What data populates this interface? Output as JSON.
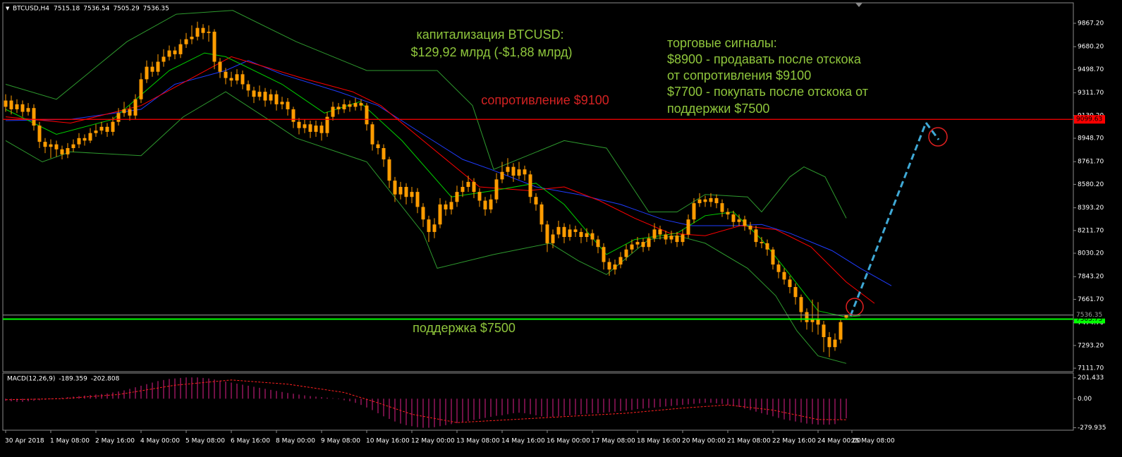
{
  "chart_data": {
    "type": "candlestick",
    "title": "BTCUSD,H4",
    "color": "#ff9c00",
    "open": [
      9200,
      9250,
      9180,
      9220,
      9160,
      9190,
      9050,
      8920,
      8880,
      8900,
      8860,
      8820,
      8870,
      8900,
      8950,
      8930,
      8990,
      9010,
      9040,
      9000,
      9080,
      9150,
      9180,
      9130,
      9260,
      9420,
      9520,
      9480,
      9560,
      9600,
      9650,
      9620,
      9700,
      9740,
      9760,
      9830,
      9790,
      9800,
      9560,
      9480,
      9430,
      9410,
      9460,
      9380,
      9330,
      9280,
      9320,
      9250,
      9300,
      9220,
      9240,
      9180,
      9080,
      9030,
      9060,
      9000,
      9050,
      8990,
      9120,
      9200,
      9180,
      9220,
      9200,
      9230,
      9210,
      9060,
      8900,
      8870,
      8780,
      8610,
      8500,
      8560,
      8480,
      8520,
      8400,
      8300,
      8200,
      8260,
      8420,
      8380,
      8440,
      8520,
      8560,
      8600,
      8520,
      8450,
      8380,
      8460,
      8620,
      8680,
      8720,
      8650,
      8700,
      8660,
      8480,
      8420,
      8260,
      8110,
      8180,
      8240,
      8160,
      8220,
      8200,
      8160,
      8190,
      8140,
      8080,
      7960,
      7900,
      7940,
      8000,
      8060,
      8100,
      8120,
      8080,
      8150,
      8220,
      8180,
      8140,
      8170,
      8120,
      8180,
      8300,
      8430,
      8460,
      8440,
      8470,
      8430,
      8360,
      8340,
      8280,
      8300,
      8250,
      8220,
      8120,
      8110,
      8060,
      7940,
      7880,
      7820,
      7760,
      7680,
      7560,
      7480,
      7500,
      7460,
      7360,
      7280,
      7340,
      7515.18
    ],
    "high": [
      9300,
      9290,
      9260,
      9250,
      9230,
      9220,
      9080,
      8950,
      8940,
      8930,
      8890,
      8910,
      8940,
      8990,
      8980,
      9030,
      9060,
      9080,
      9070,
      9120,
      9190,
      9240,
      9210,
      9300,
      9470,
      9570,
      9560,
      9620,
      9660,
      9690,
      9680,
      9740,
      9790,
      9850,
      9880,
      9860,
      9850,
      9820,
      9590,
      9510,
      9480,
      9500,
      9490,
      9410,
      9360,
      9370,
      9350,
      9340,
      9330,
      9280,
      9270,
      9200,
      9110,
      9100,
      9090,
      9090,
      9080,
      9160,
      9240,
      9230,
      9260,
      9250,
      9270,
      9260,
      9230,
      9080,
      8930,
      8900,
      8800,
      8640,
      8600,
      8590,
      8560,
      8550,
      8430,
      8330,
      8310,
      8470,
      8450,
      8490,
      8570,
      8610,
      8650,
      8630,
      8550,
      8480,
      8500,
      8670,
      8760,
      8790,
      8750,
      8760,
      8730,
      8690,
      8510,
      8440,
      8290,
      8220,
      8290,
      8270,
      8260,
      8250,
      8230,
      8230,
      8220,
      8170,
      8110,
      7990,
      7980,
      8040,
      8100,
      8140,
      8160,
      8150,
      8190,
      8270,
      8250,
      8210,
      8210,
      8200,
      8220,
      8340,
      8470,
      8510,
      8490,
      8510,
      8500,
      8460,
      8390,
      8370,
      8340,
      8330,
      8280,
      8250,
      8160,
      8140,
      8080,
      7970,
      7910,
      7850,
      7790,
      7700,
      7590,
      7660,
      7640,
      7490,
      7400,
      7390,
      7510,
      7536.54
    ],
    "low": [
      9160,
      9140,
      9150,
      9120,
      9130,
      9010,
      8870,
      8830,
      8790,
      8800,
      8780,
      8790,
      8840,
      8870,
      8890,
      8910,
      8960,
      8980,
      8960,
      8970,
      9050,
      9120,
      9090,
      9100,
      9230,
      9390,
      9440,
      9450,
      9520,
      9570,
      9580,
      9590,
      9670,
      9700,
      9730,
      9740,
      9720,
      9500,
      9430,
      9380,
      9360,
      9380,
      9340,
      9280,
      9230,
      9250,
      9200,
      9220,
      9170,
      9180,
      9130,
      9030,
      8980,
      8990,
      8950,
      8960,
      8930,
      8960,
      9090,
      9140,
      9150,
      9160,
      9170,
      9170,
      9010,
      8850,
      8820,
      8720,
      8550,
      8440,
      8460,
      8420,
      8430,
      8350,
      8240,
      8120,
      8150,
      8230,
      8330,
      8340,
      8400,
      8480,
      8520,
      8470,
      8400,
      8330,
      8350,
      8430,
      8590,
      8650,
      8600,
      8620,
      8610,
      8430,
      8370,
      8200,
      8040,
      8070,
      8150,
      8110,
      8130,
      8160,
      8110,
      8120,
      8090,
      8030,
      7900,
      7850,
      7860,
      7910,
      7970,
      8030,
      8070,
      8040,
      8050,
      8120,
      8140,
      8100,
      8110,
      8080,
      8090,
      8150,
      8270,
      8400,
      8400,
      8400,
      8390,
      8320,
      8300,
      8240,
      8250,
      8210,
      8180,
      8080,
      8070,
      8010,
      7900,
      7830,
      7780,
      7710,
      7620,
      7480,
      7420,
      7400,
      7380,
      7240,
      7200,
      7250,
      7310,
      7505.29
    ],
    "close": [
      9250,
      9180,
      9220,
      9160,
      9190,
      9050,
      8920,
      8880,
      8900,
      8860,
      8820,
      8870,
      8900,
      8950,
      8930,
      8990,
      9010,
      9040,
      9000,
      9080,
      9150,
      9180,
      9130,
      9260,
      9420,
      9520,
      9480,
      9560,
      9600,
      9650,
      9620,
      9700,
      9740,
      9760,
      9830,
      9790,
      9800,
      9560,
      9480,
      9430,
      9410,
      9460,
      9380,
      9330,
      9280,
      9320,
      9250,
      9300,
      9220,
      9240,
      9180,
      9080,
      9030,
      9060,
      9000,
      9050,
      8990,
      9120,
      9200,
      9180,
      9220,
      9200,
      9230,
      9210,
      9060,
      8900,
      8870,
      8780,
      8610,
      8500,
      8560,
      8480,
      8520,
      8400,
      8300,
      8200,
      8260,
      8420,
      8380,
      8440,
      8520,
      8560,
      8600,
      8520,
      8450,
      8380,
      8460,
      8620,
      8680,
      8720,
      8650,
      8700,
      8660,
      8480,
      8420,
      8260,
      8110,
      8180,
      8240,
      8160,
      8220,
      8200,
      8160,
      8190,
      8140,
      8080,
      7960,
      7900,
      7940,
      8000,
      8060,
      8100,
      8120,
      8080,
      8150,
      8220,
      8180,
      8140,
      8170,
      8120,
      8180,
      8300,
      8430,
      8460,
      8440,
      8470,
      8430,
      8360,
      8340,
      8280,
      8300,
      8250,
      8220,
      8120,
      8110,
      8060,
      7940,
      7880,
      7820,
      7760,
      7680,
      7560,
      7480,
      7500,
      7460,
      7360,
      7280,
      7340,
      7480,
      7536.35
    ],
    "xlim": [
      -0.5,
      189.25
    ],
    "xticks": [
      {
        "value": 0,
        "label": "30 Apr 2018"
      },
      {
        "value": 8,
        "label": "1 May 08:00"
      },
      {
        "value": 16,
        "label": "2 May 16:00"
      },
      {
        "value": 24,
        "label": "4 May 00:00"
      },
      {
        "value": 32,
        "label": "5 May 08:00"
      },
      {
        "value": 40,
        "label": "6 May 16:00"
      },
      {
        "value": 48,
        "label": "8 May 00:00"
      },
      {
        "value": 56,
        "label": "9 May 08:00"
      },
      {
        "value": 64,
        "label": "10 May 16:00"
      },
      {
        "value": 72,
        "label": "12 May 00:00"
      },
      {
        "value": 80,
        "label": "13 May 08:00"
      },
      {
        "value": 88,
        "label": "14 May 16:00"
      },
      {
        "value": 96,
        "label": "16 May 00:00"
      },
      {
        "value": 104,
        "label": "17 May 08:00"
      },
      {
        "value": 112,
        "label": "18 May 16:00"
      },
      {
        "value": 120,
        "label": "20 May 00:00"
      },
      {
        "value": 128,
        "label": "21 May 08:00"
      },
      {
        "value": 136,
        "label": "22 May 16:00"
      },
      {
        "value": 144,
        "label": "24 May 00:00"
      },
      {
        "value": 150,
        "label": "25 May 08:00"
      }
    ],
    "ylim": [
      7084,
      10025
    ],
    "yticks": [
      {
        "value": 9867.2,
        "label": "9867.20"
      },
      {
        "value": 9680.2,
        "label": "9680.20"
      },
      {
        "value": 9498.7,
        "label": "9498.70"
      },
      {
        "value": 9311.7,
        "label": "9311.70"
      },
      {
        "value": 9130.2,
        "label": "9130.20"
      },
      {
        "value": 8948.7,
        "label": "8948.70"
      },
      {
        "value": 8761.7,
        "label": "8761.70"
      },
      {
        "value": 8580.2,
        "label": "8580.20"
      },
      {
        "value": 8393.2,
        "label": "8393.20"
      },
      {
        "value": 8211.7,
        "label": "8211.70"
      },
      {
        "value": 8030.2,
        "label": "8030.20"
      },
      {
        "value": 7843.2,
        "label": "7843.20"
      },
      {
        "value": 7661.7,
        "label": "7661.70"
      },
      {
        "value": 7474.7,
        "label": "7474.70"
      },
      {
        "value": 7293.2,
        "label": "7293.20"
      },
      {
        "value": 7111.7,
        "label": "7111.70"
      }
    ],
    "grid": false,
    "levels": [
      {
        "value": 9099.63,
        "color": "#ff0000"
      },
      {
        "value": 7503.73,
        "color": "#00ff00"
      }
    ],
    "lines": [
      {
        "color": "#1f3cff",
        "x": [
          0,
          11.5,
          24,
          30,
          39,
          43,
          49,
          59,
          66,
          74,
          81,
          86,
          94,
          101.5,
          109,
          116.5,
          121.5,
          129,
          134,
          139,
          146.5,
          151.5,
          157
        ],
        "values": [
          9090,
          9100,
          9180,
          9380,
          9490,
          9570,
          9460,
          9320,
          9210,
          8980,
          8780,
          8700,
          8560,
          8500,
          8420,
          8300,
          8250,
          8250,
          8260,
          8190,
          8050,
          7910,
          7770
        ]
      },
      {
        "color": "#ff0000",
        "x": [
          0,
          11.5,
          24,
          40,
          52.5,
          61.5,
          66.5,
          74,
          84,
          92.75,
          99,
          105.25,
          111.5,
          117.75,
          124,
          130.25,
          136.5,
          142.75,
          149,
          154
        ],
        "values": [
          9120,
          9070,
          9210,
          9600,
          9430,
          9320,
          9210,
          8930,
          8560,
          8530,
          8560,
          8450,
          8310,
          8190,
          8170,
          8250,
          8220,
          8080,
          7800,
          7630
        ]
      },
      {
        "color": "#00d000",
        "x": [
          0,
          9,
          19,
          29,
          35.25,
          39,
          49,
          56.5,
          62.75,
          70.25,
          79,
          86.5,
          94,
          99,
          106.5,
          111.5,
          119,
          124,
          129,
          134,
          139,
          144,
          149,
          151.5
        ],
        "values": [
          9180,
          8980,
          9100,
          9490,
          9630,
          9600,
          9380,
          9150,
          9240,
          8930,
          8480,
          8530,
          8590,
          8420,
          8020,
          8140,
          8190,
          8330,
          8360,
          8140,
          7860,
          7570,
          7520,
          7530
        ]
      },
      {
        "color": "#2e9a2e",
        "x": [
          0,
          9,
          21.5,
          30.25,
          40.25,
          51.5,
          64,
          76.5,
          82.75,
          86.5,
          99,
          106.5,
          114,
          119,
          124,
          131.5,
          134,
          139,
          141.5,
          145.25,
          149
        ],
        "values": [
          9380,
          9260,
          9720,
          9940,
          9970,
          9720,
          9490,
          9490,
          9210,
          8700,
          8930,
          8870,
          8360,
          8360,
          8500,
          8480,
          8360,
          8640,
          8720,
          8640,
          8310
        ]
      },
      {
        "color": "#2e9a2e",
        "x": [
          0,
          6.5,
          11.5,
          24,
          31.5,
          39,
          46.5,
          51.5,
          64,
          74,
          76.5,
          86.5,
          96.5,
          101.5,
          106.5,
          114,
          119,
          124,
          131.5,
          136.5,
          140.25,
          144,
          149
        ],
        "values": [
          8930,
          8760,
          8840,
          8810,
          9120,
          9320,
          9100,
          8950,
          8760,
          8190,
          7910,
          8020,
          8110,
          7970,
          7860,
          8140,
          8170,
          8110,
          7910,
          7690,
          7410,
          7210,
          7150
        ]
      }
    ],
    "annotations": [
      {
        "text": "капитализация BTCUSD:",
        "color": "#8fc63c"
      },
      {
        "text": "$129,92 млрд (-$1,88 млрд)",
        "color": "#8fc63c"
      },
      {
        "text": "сопротивление $9100",
        "color": "#d42222"
      },
      {
        "text": "торговые сигналы:",
        "color": "#8fc63c"
      },
      {
        "text": "$8900 - продавать после отскока",
        "color": "#8fc63c"
      },
      {
        "text": "от сопротивления $9100",
        "color": "#8fc63c"
      },
      {
        "text": "$7700 - покупать после отскока от",
        "color": "#8fc63c"
      },
      {
        "text": "поддержки $7500",
        "color": "#8fc63c"
      },
      {
        "text": "поддержка $7500",
        "color": "#8fc63c"
      }
    ],
    "macd": {
      "title": "MACD(12,26,9)",
      "main_value": -189.359,
      "signal_value": -202.808,
      "color": "#e0208a",
      "histogram": [
        -20,
        -25,
        -30,
        -30,
        -25,
        -20,
        -15,
        -10,
        -5,
        5,
        10,
        15,
        20,
        25,
        30,
        35,
        40,
        45,
        50,
        60,
        70,
        80,
        95,
        110,
        125,
        140,
        155,
        170,
        180,
        190,
        195,
        200,
        205,
        205,
        205,
        200,
        195,
        185,
        175,
        165,
        155,
        145,
        135,
        125,
        115,
        105,
        95,
        85,
        75,
        65,
        55,
        48,
        40,
        32,
        25,
        20,
        15,
        10,
        5,
        -5,
        -15,
        -25,
        -40,
        -60,
        -85,
        -110,
        -140,
        -170,
        -195,
        -220,
        -240,
        -255,
        -265,
        -275,
        -280,
        -280,
        -275,
        -265,
        -255,
        -245,
        -235,
        -225,
        -215,
        -205,
        -195,
        -185,
        -175,
        -165,
        -160,
        -150,
        -140,
        -135,
        -140,
        -150,
        -160,
        -170,
        -175,
        -175,
        -170,
        -165,
        -160,
        -155,
        -150,
        -145,
        -140,
        -140,
        -135,
        -130,
        -125,
        -120,
        -115,
        -110,
        -100,
        -95,
        -90,
        -85,
        -80,
        -75,
        -70,
        -65,
        -60,
        -55,
        -50,
        -45,
        -40,
        -40,
        -45,
        -50,
        -60,
        -70,
        -80,
        -95,
        -110,
        -125,
        -140,
        -155,
        -170,
        -185,
        -200,
        -210,
        -220,
        -230,
        -240,
        -245,
        -250,
        -250,
        -250,
        -245,
        -200,
        -189.359
      ],
      "signal": {
        "color": "#ff2020",
        "x": [
          0,
          10,
          20,
          30,
          40,
          50,
          60,
          66,
          72,
          80,
          90,
          100,
          110,
          120,
          128,
          136,
          144,
          149
        ],
        "values": [
          -10,
          0,
          40,
          130,
          180,
          140,
          60,
          -40,
          -150,
          -230,
          -200,
          -170,
          -140,
          -90,
          -60,
          -110,
          -200,
          -202.808
        ]
      },
      "ylim": [
        -290,
        240
      ],
      "yticks": [
        201.433,
        {
          "value": 0,
          "label": "0.00"
        },
        -279.935
      ]
    }
  }
}
